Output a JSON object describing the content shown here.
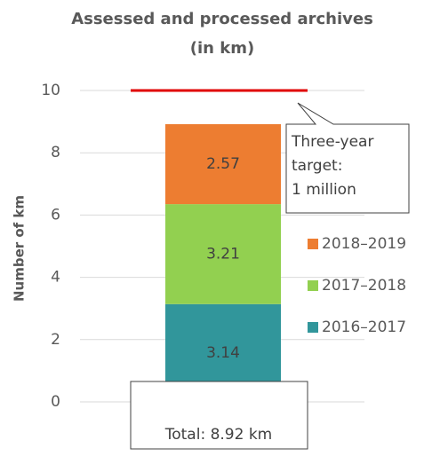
{
  "chart_data": {
    "type": "stacked-bar",
    "title": [
      "Assessed and processed archives",
      "(in km)"
    ],
    "y_label": "Number of km",
    "categories": [
      null
    ],
    "series": [
      {
        "name": "2016–2017",
        "color": "#31969b",
        "values": [
          3.14
        ]
      },
      {
        "name": "2017–2018",
        "color": "#92d050",
        "values": [
          3.21
        ]
      },
      {
        "name": "2018–2019",
        "color": "#ed7d31",
        "values": [
          2.57
        ]
      }
    ],
    "ylim": [
      0,
      10
    ],
    "yticks": [
      0,
      2,
      4,
      6,
      8,
      10
    ],
    "grid": true,
    "target": {
      "value": 10,
      "color": "#e00000"
    },
    "annotation": [
      "Three-year",
      "target:",
      "1 million"
    ],
    "total_label": "Total: 8.92 km",
    "legend": "right"
  }
}
